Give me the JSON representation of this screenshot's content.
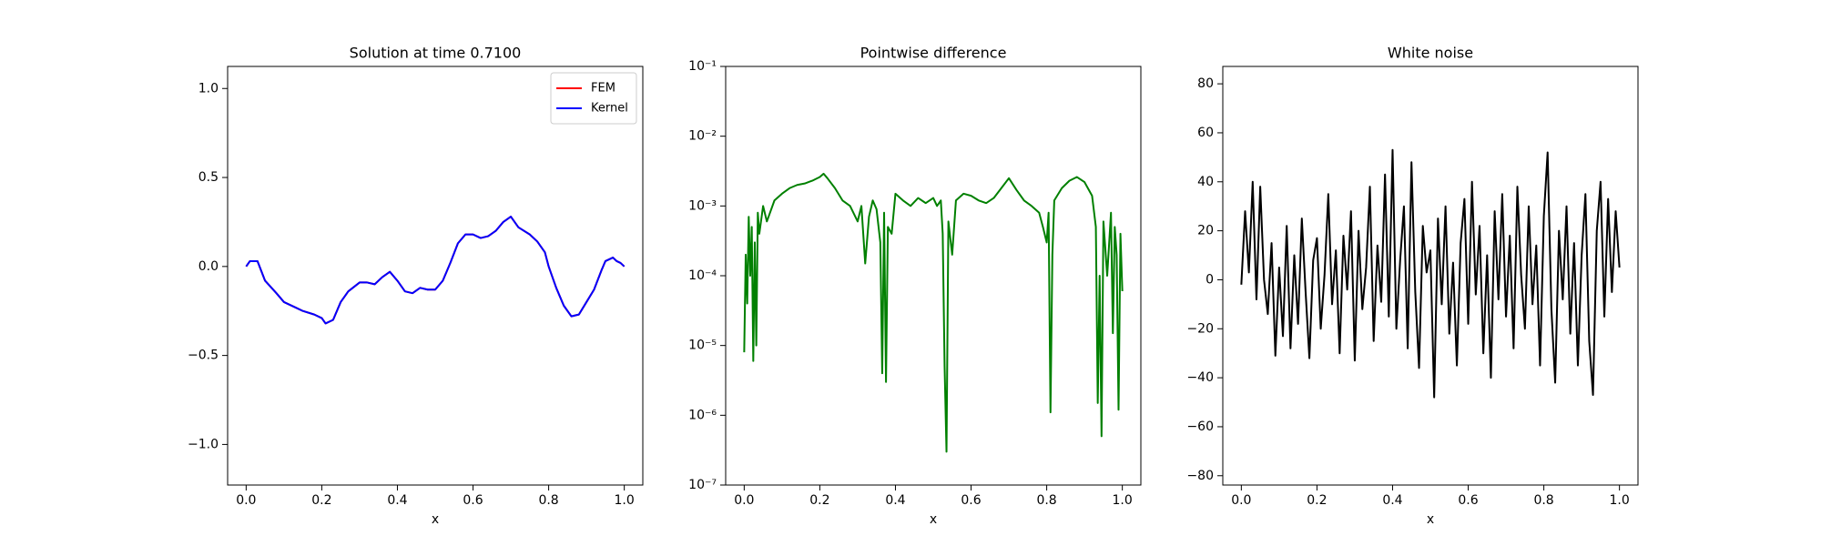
{
  "chart_data": [
    {
      "type": "line",
      "title": "Solution at time 0.7100",
      "xlabel": "x",
      "xlim": [
        -0.049,
        1.049
      ],
      "ylim": [
        -1.228,
        1.124
      ],
      "xticks": [
        {
          "value": 0,
          "label": "0.0"
        },
        {
          "value": 0.2,
          "label": "0.2"
        },
        {
          "value": 0.4,
          "label": "0.4"
        },
        {
          "value": 0.6,
          "label": "0.6"
        },
        {
          "value": 0.8,
          "label": "0.8"
        },
        {
          "value": 1,
          "label": "1.0"
        }
      ],
      "yticks": [
        {
          "value": -1,
          "label": "−1.0"
        },
        {
          "value": -0.5,
          "label": "−0.5"
        },
        {
          "value": 0,
          "label": "0.0"
        },
        {
          "value": 0.5,
          "label": "0.5"
        },
        {
          "value": 1,
          "label": "1.0"
        }
      ],
      "legend": "upper right",
      "x": [
        0,
        0.01,
        0.03,
        0.05,
        0.08,
        0.1,
        0.13,
        0.15,
        0.18,
        0.2,
        0.21,
        0.23,
        0.25,
        0.27,
        0.3,
        0.32,
        0.34,
        0.36,
        0.38,
        0.4,
        0.42,
        0.44,
        0.46,
        0.48,
        0.5,
        0.52,
        0.54,
        0.56,
        0.58,
        0.6,
        0.62,
        0.64,
        0.66,
        0.68,
        0.7,
        0.72,
        0.75,
        0.77,
        0.79,
        0.8,
        0.82,
        0.84,
        0.86,
        0.88,
        0.9,
        0.92,
        0.94,
        0.95,
        0.97,
        0.98,
        0.99,
        1.0
      ],
      "series": [
        {
          "name": "FEM",
          "color": "#ff0000",
          "values": [
            0,
            0.03,
            0.03,
            -0.08,
            -0.15,
            -0.2,
            -0.23,
            -0.25,
            -0.27,
            -0.29,
            -0.32,
            -0.3,
            -0.2,
            -0.14,
            -0.09,
            -0.09,
            -0.1,
            -0.06,
            -0.03,
            -0.08,
            -0.14,
            -0.15,
            -0.12,
            -0.13,
            -0.13,
            -0.08,
            0.02,
            0.13,
            0.18,
            0.18,
            0.16,
            0.17,
            0.2,
            0.25,
            0.28,
            0.22,
            0.18,
            0.14,
            0.08,
            0,
            -0.12,
            -0.22,
            -0.28,
            -0.27,
            -0.2,
            -0.13,
            -0.02,
            0.03,
            0.05,
            0.03,
            0.02,
            0
          ]
        },
        {
          "name": "Kernel",
          "color": "#0000ff",
          "values": [
            0,
            0.03,
            0.03,
            -0.08,
            -0.15,
            -0.2,
            -0.23,
            -0.25,
            -0.27,
            -0.29,
            -0.32,
            -0.3,
            -0.2,
            -0.14,
            -0.09,
            -0.09,
            -0.1,
            -0.06,
            -0.03,
            -0.08,
            -0.14,
            -0.15,
            -0.12,
            -0.13,
            -0.13,
            -0.08,
            0.02,
            0.13,
            0.18,
            0.18,
            0.16,
            0.17,
            0.2,
            0.25,
            0.28,
            0.22,
            0.18,
            0.14,
            0.08,
            0,
            -0.12,
            -0.22,
            -0.28,
            -0.27,
            -0.2,
            -0.13,
            -0.02,
            0.03,
            0.05,
            0.03,
            0.02,
            0
          ]
        }
      ]
    },
    {
      "type": "line",
      "title": "Pointwise difference",
      "xlabel": "x",
      "yscale": "log",
      "xlim": [
        -0.049,
        1.049
      ],
      "ylim": [
        1e-07,
        0.1
      ],
      "xticks": [
        {
          "value": 0,
          "label": "0.0"
        },
        {
          "value": 0.2,
          "label": "0.2"
        },
        {
          "value": 0.4,
          "label": "0.4"
        },
        {
          "value": 0.6,
          "label": "0.6"
        },
        {
          "value": 0.8,
          "label": "0.8"
        },
        {
          "value": 1,
          "label": "1.0"
        }
      ],
      "yticks": [
        {
          "value": 1e-07,
          "label": "10⁻⁷"
        },
        {
          "value": 1e-06,
          "label": "10⁻⁶"
        },
        {
          "value": 1e-05,
          "label": "10⁻⁵"
        },
        {
          "value": 0.0001,
          "label": "10⁻⁴"
        },
        {
          "value": 0.001,
          "label": "10⁻³"
        },
        {
          "value": 0.01,
          "label": "10⁻²"
        },
        {
          "value": 0.1,
          "label": "10⁻¹"
        }
      ],
      "color": "#008000",
      "x": [
        0,
        0.004,
        0.008,
        0.012,
        0.016,
        0.02,
        0.024,
        0.028,
        0.032,
        0.036,
        0.04,
        0.05,
        0.06,
        0.08,
        0.1,
        0.12,
        0.14,
        0.16,
        0.18,
        0.2,
        0.21,
        0.22,
        0.24,
        0.26,
        0.28,
        0.3,
        0.31,
        0.32,
        0.33,
        0.34,
        0.35,
        0.36,
        0.365,
        0.37,
        0.375,
        0.38,
        0.39,
        0.4,
        0.42,
        0.44,
        0.46,
        0.48,
        0.5,
        0.51,
        0.52,
        0.525,
        0.53,
        0.535,
        0.54,
        0.55,
        0.56,
        0.58,
        0.6,
        0.62,
        0.64,
        0.66,
        0.68,
        0.7,
        0.72,
        0.74,
        0.76,
        0.78,
        0.79,
        0.8,
        0.805,
        0.81,
        0.815,
        0.82,
        0.84,
        0.86,
        0.88,
        0.9,
        0.92,
        0.93,
        0.935,
        0.94,
        0.945,
        0.95,
        0.96,
        0.97,
        0.975,
        0.98,
        0.985,
        0.99,
        0.995,
        1.0
      ],
      "values": [
        8e-06,
        0.0002,
        4e-05,
        0.0007,
        0.0001,
        0.0005,
        6e-06,
        0.0003,
        1e-05,
        0.0008,
        0.0004,
        0.001,
        0.0006,
        0.0012,
        0.0015,
        0.0018,
        0.002,
        0.0021,
        0.0023,
        0.0026,
        0.0029,
        0.0025,
        0.0018,
        0.0012,
        0.001,
        0.0006,
        0.001,
        0.00015,
        0.0007,
        0.0012,
        0.0009,
        0.0003,
        4e-06,
        0.0008,
        3e-06,
        0.0005,
        0.0004,
        0.0015,
        0.0012,
        0.001,
        0.0013,
        0.0011,
        0.0013,
        0.001,
        0.0012,
        0.0004,
        5e-06,
        3e-07,
        0.0006,
        0.0002,
        0.0012,
        0.0015,
        0.0014,
        0.0012,
        0.0011,
        0.0013,
        0.0018,
        0.0025,
        0.0017,
        0.0012,
        0.001,
        0.0008,
        0.0005,
        0.0003,
        0.0008,
        1.1e-06,
        0.0002,
        0.0012,
        0.0018,
        0.0023,
        0.0026,
        0.0022,
        0.0014,
        0.0005,
        1.5e-06,
        0.0001,
        5e-07,
        0.0006,
        0.0001,
        0.0008,
        1.5e-05,
        0.0005,
        0.0002,
        1.2e-06,
        0.0004,
        6e-05
      ]
    },
    {
      "type": "line",
      "title": "White noise",
      "xlabel": "x",
      "xlim": [
        -0.049,
        1.049
      ],
      "ylim": [
        -83.8,
        87.1
      ],
      "xticks": [
        {
          "value": 0,
          "label": "0.0"
        },
        {
          "value": 0.2,
          "label": "0.2"
        },
        {
          "value": 0.4,
          "label": "0.4"
        },
        {
          "value": 0.6,
          "label": "0.6"
        },
        {
          "value": 0.8,
          "label": "0.8"
        },
        {
          "value": 1,
          "label": "1.0"
        }
      ],
      "yticks": [
        {
          "value": -80,
          "label": "−80"
        },
        {
          "value": -60,
          "label": "−60"
        },
        {
          "value": -40,
          "label": "−40"
        },
        {
          "value": -20,
          "label": "−20"
        },
        0,
        20,
        40,
        60,
        80
      ],
      "color": "#000000",
      "x": [
        0,
        0.01,
        0.02,
        0.03,
        0.04,
        0.05,
        0.06,
        0.07,
        0.08,
        0.09,
        0.1,
        0.11,
        0.12,
        0.13,
        0.14,
        0.15,
        0.16,
        0.17,
        0.18,
        0.19,
        0.2,
        0.21,
        0.22,
        0.23,
        0.24,
        0.25,
        0.26,
        0.27,
        0.28,
        0.29,
        0.3,
        0.31,
        0.32,
        0.33,
        0.34,
        0.35,
        0.36,
        0.37,
        0.38,
        0.39,
        0.4,
        0.41,
        0.42,
        0.43,
        0.44,
        0.45,
        0.46,
        0.47,
        0.48,
        0.49,
        0.5,
        0.51,
        0.52,
        0.53,
        0.54,
        0.55,
        0.56,
        0.57,
        0.58,
        0.59,
        0.6,
        0.61,
        0.62,
        0.63,
        0.64,
        0.65,
        0.66,
        0.67,
        0.68,
        0.69,
        0.7,
        0.71,
        0.72,
        0.73,
        0.74,
        0.75,
        0.76,
        0.77,
        0.78,
        0.79,
        0.8,
        0.81,
        0.82,
        0.83,
        0.84,
        0.85,
        0.86,
        0.87,
        0.88,
        0.89,
        0.9,
        0.91,
        0.92,
        0.93,
        0.94,
        0.95,
        0.96,
        0.97,
        0.98,
        0.99,
        1.0
      ],
      "values": [
        -2,
        28,
        3,
        40,
        -8,
        38,
        0,
        -14,
        15,
        -31,
        5,
        -23,
        22,
        -28,
        10,
        -18,
        25,
        -5,
        -32,
        8,
        17,
        -20,
        2,
        35,
        -10,
        12,
        -30,
        18,
        -4,
        28,
        -33,
        20,
        -12,
        5,
        38,
        -25,
        14,
        -9,
        43,
        -15,
        53,
        -20,
        8,
        30,
        -28,
        48,
        -5,
        -36,
        22,
        3,
        12,
        -48,
        25,
        -10,
        30,
        -22,
        7,
        -35,
        15,
        33,
        -18,
        40,
        -6,
        22,
        -30,
        10,
        -40,
        28,
        -8,
        35,
        -15,
        18,
        -28,
        38,
        2,
        -20,
        30,
        -10,
        14,
        -35,
        26,
        52,
        -12,
        -42,
        20,
        -8,
        30,
        -22,
        15,
        -35,
        10,
        35,
        -25,
        -47,
        20,
        40,
        -15,
        33,
        -5,
        28,
        5
      ]
    }
  ]
}
